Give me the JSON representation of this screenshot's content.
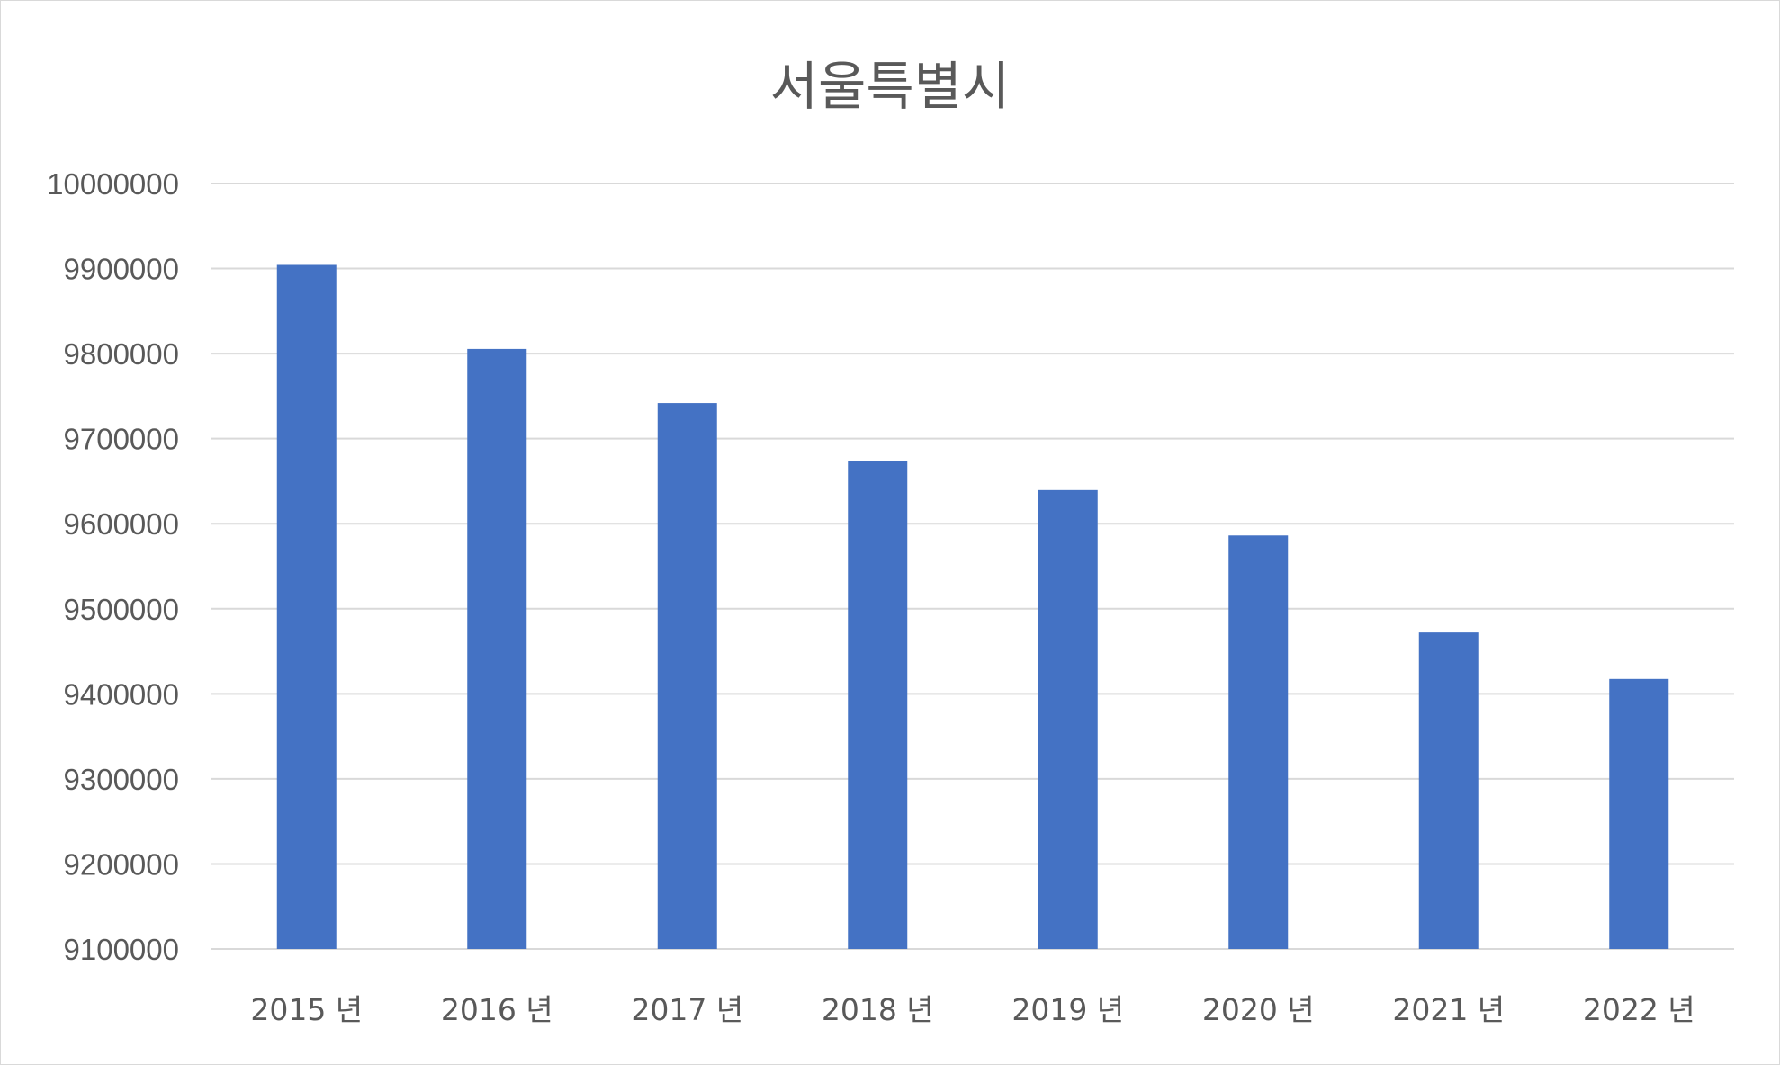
{
  "chart_data": {
    "type": "bar",
    "title": "서울특별시",
    "xlabel": "",
    "ylabel": "",
    "categories": [
      "2015 년",
      "2016 년",
      "2017 년",
      "2018 년",
      "2019 년",
      "2020 년",
      "2021 년",
      "2022 년"
    ],
    "values": [
      9904312,
      9805506,
      9741871,
      9673936,
      9639541,
      9586195,
      9472127,
      9417469
    ],
    "ylim": [
      9100000,
      10000000
    ],
    "yticks": [
      "9100000",
      "9200000",
      "9300000",
      "9400000",
      "9500000",
      "9600000",
      "9700000",
      "9800000",
      "9900000",
      "10000000"
    ],
    "grid": true,
    "legend": "none",
    "colors": {
      "bar": "#4472c4",
      "grid": "#d9d9d9",
      "text": "#595959"
    }
  }
}
